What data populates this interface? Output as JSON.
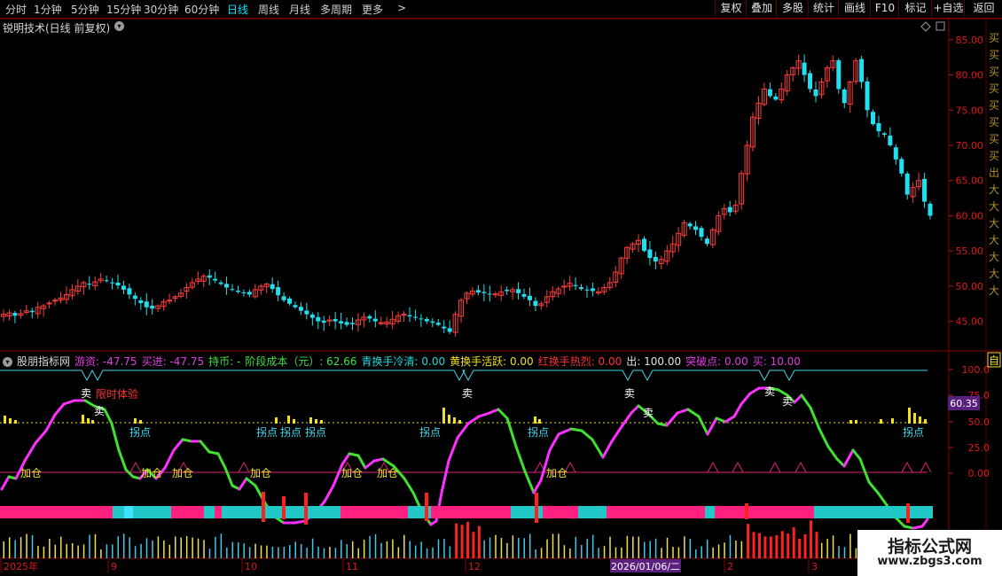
{
  "toolbar": {
    "periods": [
      "分时",
      "1分钟",
      "5分钟",
      "15分钟",
      "30分钟",
      "60分钟",
      "日线",
      "周线",
      "月线",
      "多周期",
      "更多"
    ],
    "active_period": "日线",
    "more_arrow": ">",
    "buttons": [
      "复权",
      "叠加",
      "多股",
      "统计",
      "画线",
      "F10",
      "标记",
      "+自选",
      "返回"
    ]
  },
  "main_title": "锐明技术(日线 前复权)",
  "main_menu_glyph": "▾",
  "price_axis": {
    "labels": [
      "85.00",
      "80.00",
      "75.00",
      "70.00",
      "65.00",
      "60.00",
      "55.00",
      "50.00",
      "45.00"
    ],
    "min": 41.3,
    "max": 87.5
  },
  "indicator": {
    "name": "股朋指标网",
    "fields": [
      {
        "label": "游资: ",
        "value": "-47.75",
        "color": "#e03ce0"
      },
      {
        "label": "买进: ",
        "value": "-47.75",
        "color": "#e03ce0"
      },
      {
        "label": "持币: ",
        "value": "-",
        "color": "#40e040"
      },
      {
        "label": "阶段成本（元）: ",
        "value": "62.66",
        "color": "#40e040"
      },
      {
        "label": "青换手冷清: ",
        "value": "0.00",
        "color": "#20d8d8"
      },
      {
        "label": "黄换手活跃: ",
        "value": "0.00",
        "color": "#f0e020"
      },
      {
        "label": "红换手热烈: ",
        "value": "0.00",
        "color": "#ff3030"
      },
      {
        "label": "出: ",
        "value": "100.00",
        "color": "#e0e0e0"
      },
      {
        "label": "突破点: ",
        "value": "0.00",
        "color": "#e03ce0"
      },
      {
        "label": "买: ",
        "value": "10.00",
        "color": "#e03ce0"
      }
    ],
    "axis_labels": [
      "100.0",
      "75.0",
      "50.0",
      "25.0",
      "0.00"
    ],
    "current_value": "60.35",
    "annotations": {
      "sell": "卖",
      "limited": "限时体验",
      "turn": "拐点",
      "add": "加仓"
    }
  },
  "date_axis": {
    "labels": [
      "2025年",
      "9",
      "10",
      "11",
      "12",
      "2026/01/06/二",
      "2",
      "3"
    ]
  },
  "watermark": {
    "line1": "指标公式网",
    "line2": "www.zbgs3.com"
  },
  "right_strip": {
    "chars": [
      "买",
      "买",
      "买",
      "买",
      "买",
      "买",
      "买",
      "买",
      "出",
      "大",
      "大",
      "大",
      "大",
      "大",
      "大",
      "大"
    ],
    "box_char": "自"
  },
  "chart_data": {
    "type": "candlestick",
    "title": "锐明技术(日线 前复权)",
    "ylim": [
      41.3,
      87.5
    ],
    "approx_close_series": [
      46.0,
      46.2,
      45.8,
      46.1,
      46.5,
      46.3,
      47.0,
      47.2,
      47.6,
      48.0,
      48.3,
      48.8,
      49.5,
      50.0,
      50.5,
      50.2,
      50.6,
      51.0,
      50.8,
      50.4,
      50.1,
      49.5,
      48.8,
      48.2,
      47.6,
      47.0,
      46.8,
      47.2,
      47.8,
      48.0,
      48.5,
      49.0,
      49.8,
      50.5,
      51.0,
      51.4,
      51.2,
      50.8,
      50.3,
      49.8,
      49.5,
      49.2,
      49.0,
      48.8,
      49.5,
      50.0,
      50.3,
      49.6,
      48.7,
      48.0,
      47.5,
      47.0,
      46.5,
      46.0,
      45.5,
      45.0,
      44.8,
      45.2,
      45.0,
      44.7,
      44.5,
      44.6,
      45.2,
      45.6,
      45.4,
      45.0,
      44.8,
      44.9,
      45.3,
      45.8,
      46.0,
      45.7,
      45.5,
      45.3,
      45.0,
      44.8,
      44.5,
      44.0,
      43.5,
      46.0,
      48.0,
      49.0,
      49.3,
      49.1,
      49.0,
      48.8,
      48.9,
      49.2,
      49.3,
      49.5,
      49.0,
      48.5,
      48.0,
      47.2,
      47.5,
      48.5,
      49.2,
      49.6,
      50.0,
      50.4,
      50.0,
      49.6,
      49.5,
      49.3,
      49.2,
      49.8,
      50.5,
      52.0,
      54.0,
      55.5,
      56.0,
      56.5,
      55.0,
      54.0,
      53.5,
      53.8,
      55.0,
      56.0,
      57.5,
      59.0,
      58.5,
      58.0,
      57.0,
      56.0,
      58.0,
      60.0,
      61.0,
      60.5,
      61.5,
      66.0,
      70.0,
      74.0,
      76.0,
      78.0,
      77.0,
      76.5,
      78.0,
      80.0,
      81.0,
      82.0,
      80.0,
      78.0,
      77.0,
      79.0,
      81.0,
      82.0,
      78.0,
      76.0,
      79.0,
      82.0,
      79.0,
      75.0,
      73.0,
      72.0,
      71.5,
      70.0,
      68.0,
      66.0,
      63.0,
      64.0,
      65.0,
      62.0,
      60.0
    ]
  }
}
